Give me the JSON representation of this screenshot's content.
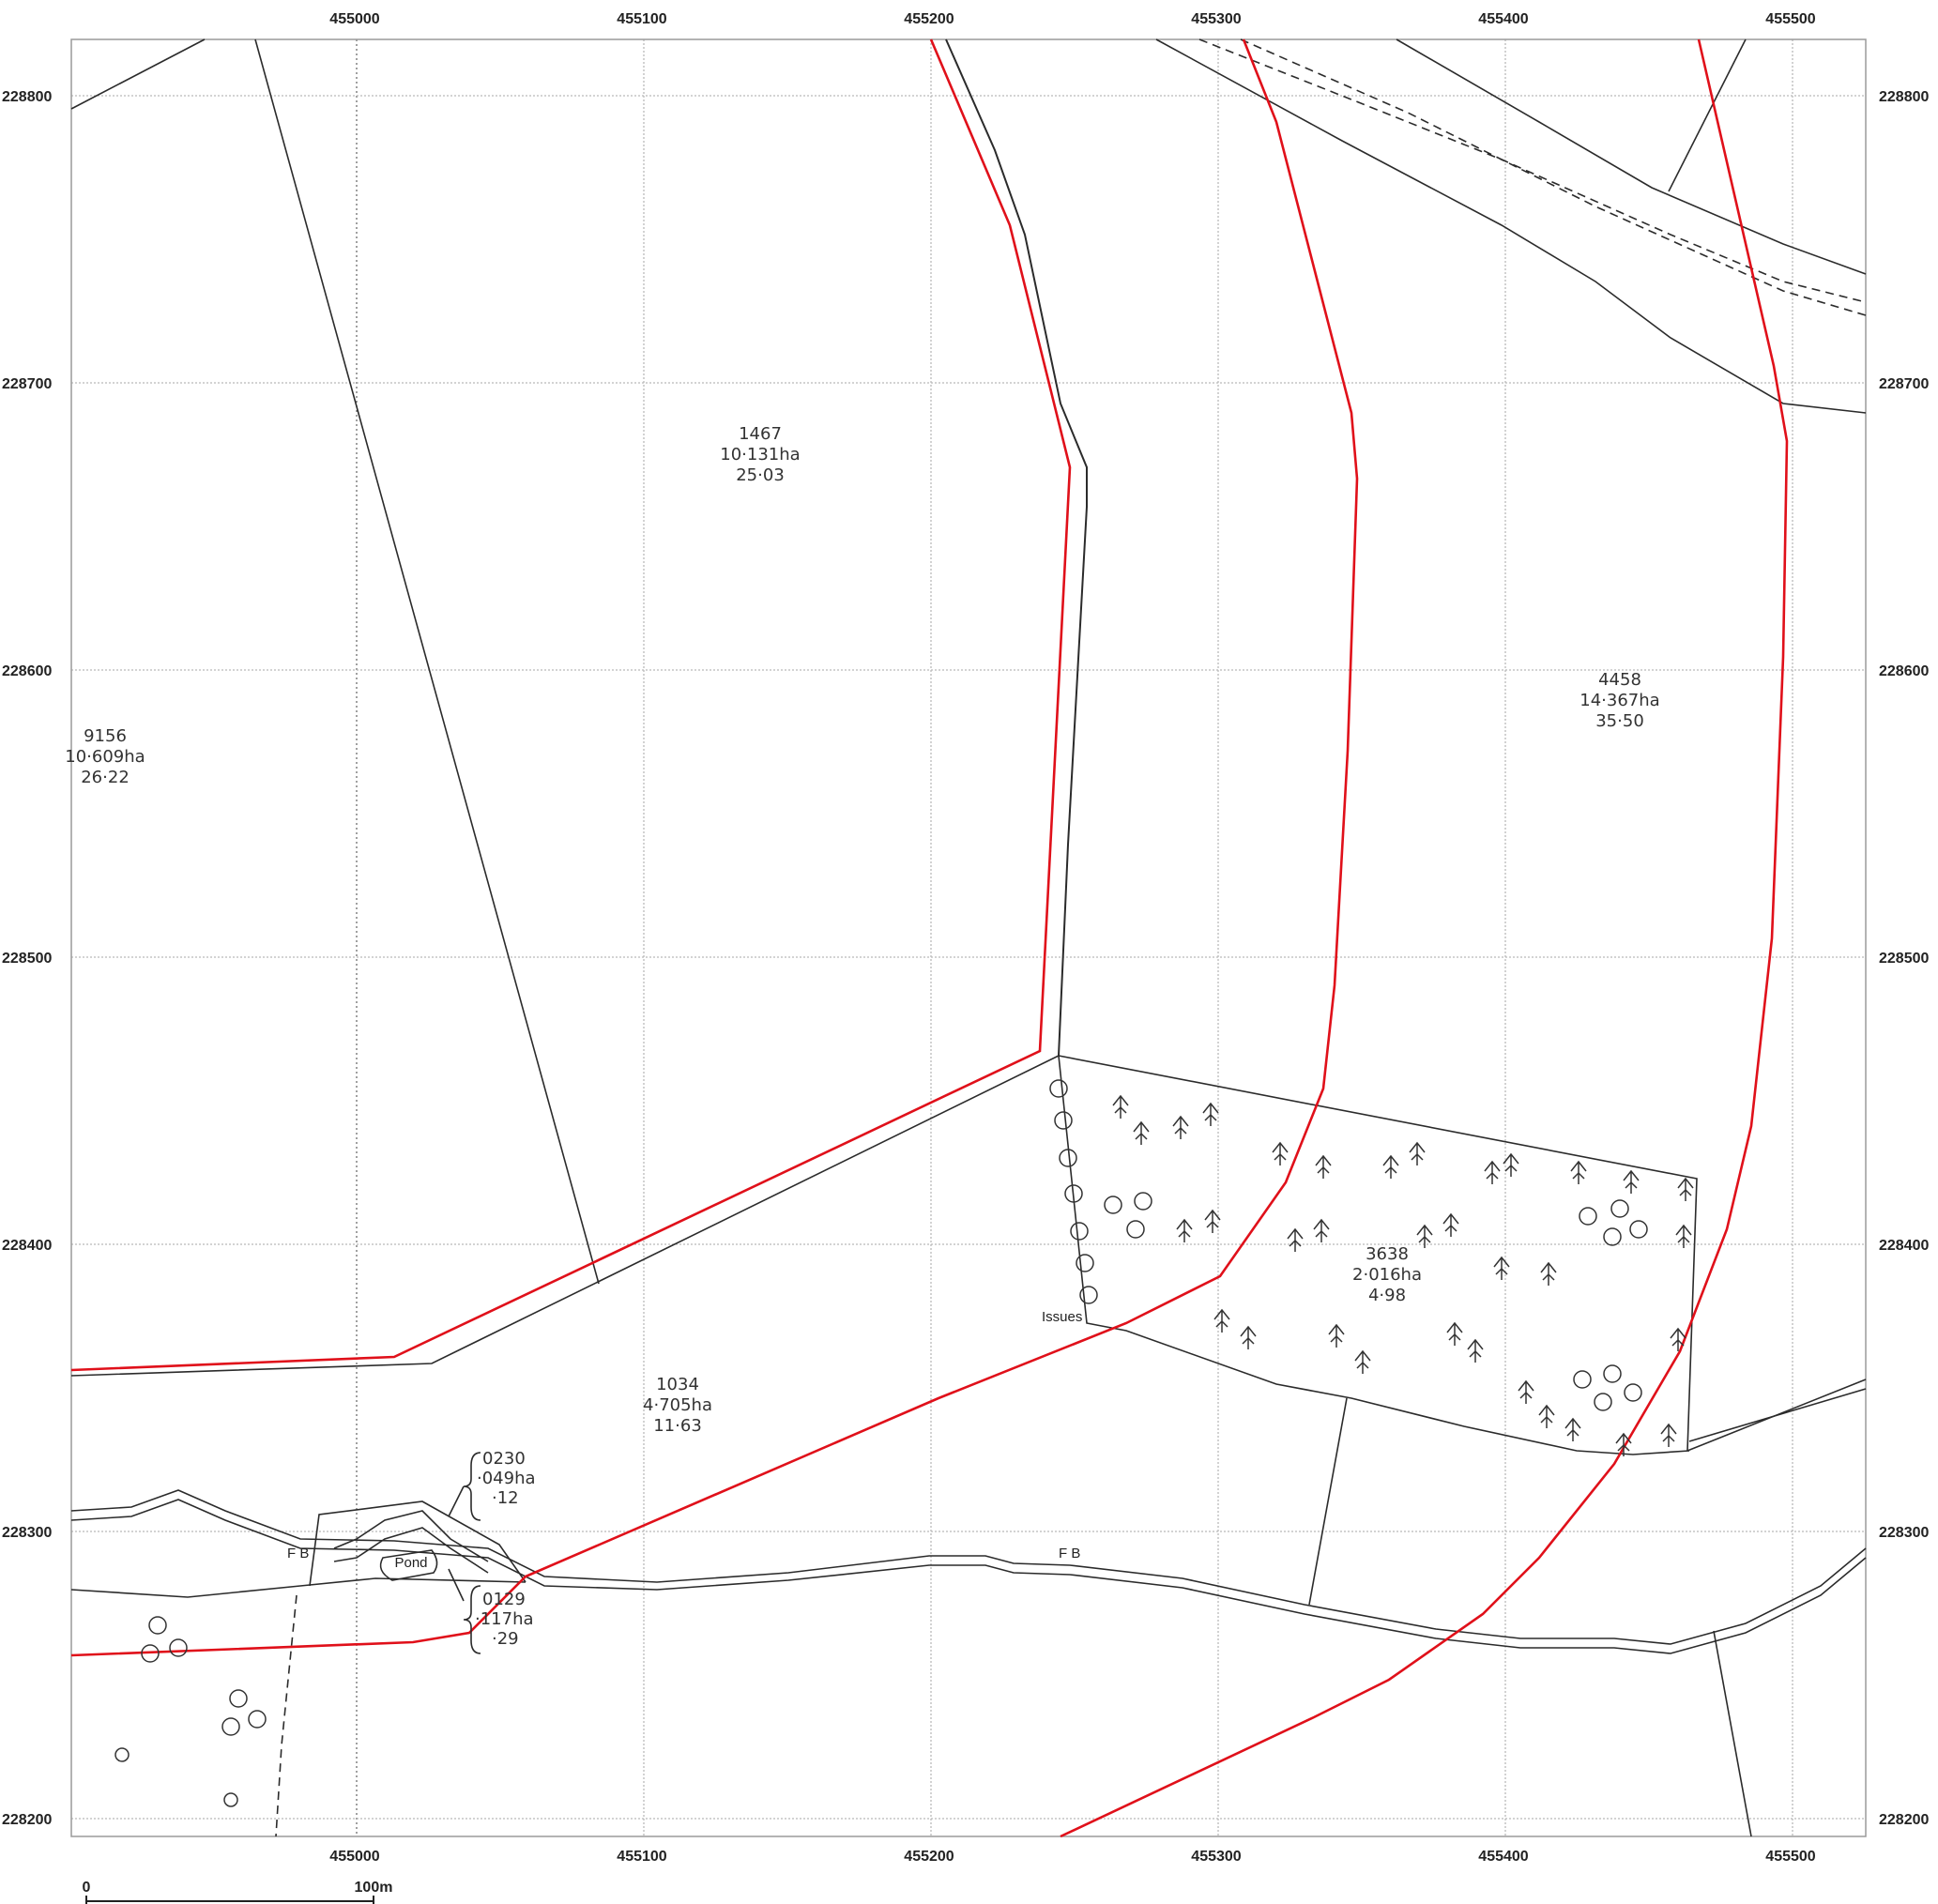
{
  "map": {
    "easting_labels": [
      "455000",
      "455100",
      "455200",
      "455300",
      "455400",
      "455500"
    ],
    "northing_labels": [
      "228800",
      "228700",
      "228600",
      "228500",
      "228400",
      "228300",
      "228200"
    ],
    "parcels": [
      {
        "id": "1467",
        "area_ha": "10·131ha",
        "area_ac": "25·03"
      },
      {
        "id": "9156",
        "area_ha": "10·609ha",
        "area_ac": "26·22"
      },
      {
        "id": "4458",
        "area_ha": "14·367ha",
        "area_ac": "35·50"
      },
      {
        "id": "3638",
        "area_ha": "2·016ha",
        "area_ac": "4·98"
      },
      {
        "id": "1034",
        "area_ha": "4·705ha",
        "area_ac": "11·63"
      },
      {
        "id": "0230",
        "area_ha": "·049ha",
        "area_ac": "·12"
      },
      {
        "id": "0129",
        "area_ha": "·117ha",
        "area_ac": "·29"
      }
    ],
    "features": {
      "pond": "Pond",
      "issues": "Issues",
      "fb_west": "F B",
      "fb_east": "F B"
    },
    "scale_bar": {
      "start": "0",
      "end": "100m"
    },
    "colors": {
      "boundary": "#2b2b2b",
      "red_line": "#e0101a",
      "grid": "#b9b9b9"
    }
  }
}
